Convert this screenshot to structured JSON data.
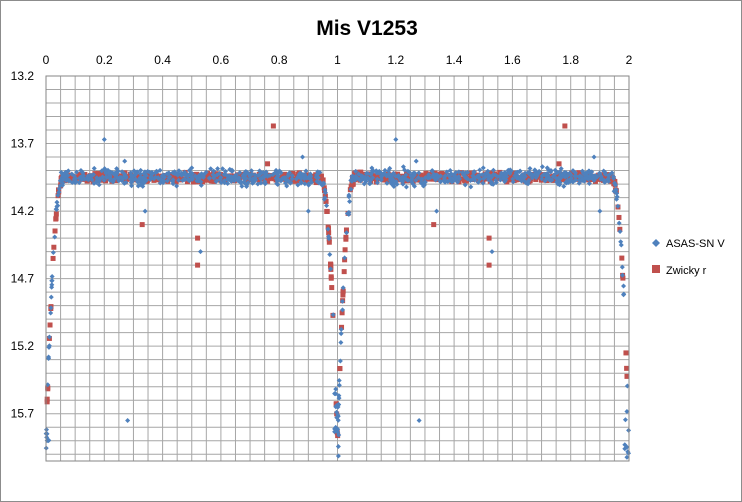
{
  "chart_data": {
    "type": "scatter",
    "title": "Mis V1253",
    "xlabel": "",
    "ylabel": "",
    "xlim": [
      0,
      2
    ],
    "ylim": [
      13.2,
      16.05
    ],
    "y_inverted": true,
    "x_axis_position": "top",
    "x_ticks": [
      "0",
      "0.2",
      "0.4",
      "0.6",
      "0.8",
      "1",
      "1.2",
      "1.4",
      "1.6",
      "1.8",
      "2"
    ],
    "y_ticks": [
      "13.2",
      "13.7",
      "14.2",
      "14.7",
      "15.2",
      "15.7"
    ],
    "x_minor_step": 0.05,
    "y_minor_step": 0.1,
    "grid": true,
    "legend_position": "right",
    "light_curve": {
      "period_phase_cycles": 2,
      "max_mag": 13.95,
      "min_mag": 15.9,
      "eclipse_center_phase": 0.0,
      "eclipse_half_width_phase": 0.06
    },
    "series": [
      {
        "name": "ASAS-SN V",
        "marker": "diamond",
        "color": "#4f81bd",
        "outliers": [
          [
            0.2,
            13.67
          ],
          [
            0.28,
            15.75
          ],
          [
            0.27,
            13.83
          ],
          [
            0.34,
            14.2
          ],
          [
            0.12,
            13.9
          ],
          [
            0.5,
            13.88
          ],
          [
            0.53,
            14.5
          ],
          [
            0.88,
            13.8
          ],
          [
            0.9,
            14.2
          ],
          [
            1.2,
            13.67
          ],
          [
            1.28,
            15.75
          ],
          [
            1.27,
            13.83
          ],
          [
            1.34,
            14.2
          ],
          [
            1.12,
            13.9
          ],
          [
            1.5,
            13.88
          ],
          [
            1.53,
            14.5
          ],
          [
            1.88,
            13.8
          ],
          [
            1.9,
            14.2
          ]
        ]
      },
      {
        "name": "Zwicky r",
        "marker": "square",
        "color": "#c0504d",
        "outliers": [
          [
            0.78,
            13.57
          ],
          [
            0.33,
            14.3
          ],
          [
            0.52,
            14.6
          ],
          [
            0.52,
            14.4
          ],
          [
            0.76,
            13.85
          ],
          [
            1.78,
            13.57
          ],
          [
            1.33,
            14.3
          ],
          [
            1.52,
            14.6
          ],
          [
            1.52,
            14.4
          ],
          [
            1.76,
            13.85
          ]
        ]
      }
    ]
  }
}
